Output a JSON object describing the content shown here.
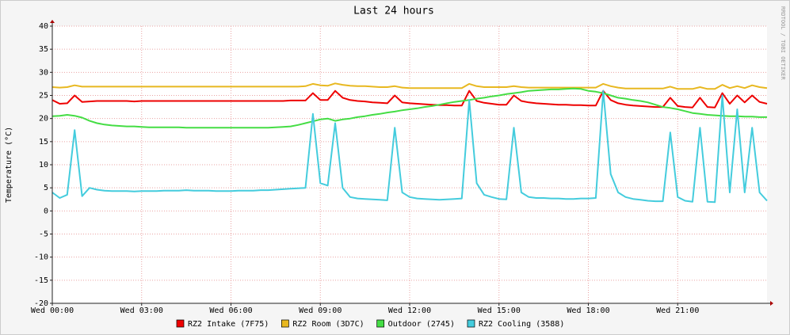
{
  "chart_data": {
    "type": "line",
    "title": "Last 24 hours",
    "ylabel": "Temperature (°C)",
    "watermark": "RRDTOOL / TOBI OETIKER",
    "x": [
      0,
      0.25,
      0.5,
      0.75,
      1,
      1.25,
      1.5,
      1.75,
      2,
      2.25,
      2.5,
      2.75,
      3,
      3.25,
      3.5,
      3.75,
      4,
      4.25,
      4.5,
      4.75,
      5,
      5.25,
      5.5,
      5.75,
      6,
      6.25,
      6.5,
      6.75,
      7,
      7.25,
      7.5,
      7.75,
      8,
      8.25,
      8.5,
      8.75,
      9,
      9.25,
      9.5,
      9.75,
      10,
      10.25,
      10.5,
      10.75,
      11,
      11.25,
      11.5,
      11.75,
      12,
      12.25,
      12.5,
      12.75,
      13,
      13.25,
      13.5,
      13.75,
      14,
      14.25,
      14.5,
      14.75,
      15,
      15.25,
      15.5,
      15.75,
      16,
      16.25,
      16.5,
      16.75,
      17,
      17.25,
      17.5,
      17.75,
      18,
      18.25,
      18.5,
      18.75,
      19,
      19.25,
      19.5,
      19.75,
      20,
      20.25,
      20.5,
      20.75,
      21,
      21.25,
      21.5,
      21.75,
      22,
      22.25,
      22.5,
      22.75,
      23,
      23.25,
      23.5,
      23.75,
      24
    ],
    "xlim": [
      0,
      24
    ],
    "xticks": [
      {
        "value": 0,
        "label": "Wed 00:00"
      },
      {
        "value": 3,
        "label": "Wed 03:00"
      },
      {
        "value": 6,
        "label": "Wed 06:00"
      },
      {
        "value": 9,
        "label": "Wed 09:00"
      },
      {
        "value": 12,
        "label": "Wed 12:00"
      },
      {
        "value": 15,
        "label": "Wed 15:00"
      },
      {
        "value": 18,
        "label": "Wed 18:00"
      },
      {
        "value": 21,
        "label": "Wed 21:00"
      }
    ],
    "ylim": [
      -20,
      40
    ],
    "yticks": [
      -20,
      -15,
      -10,
      -5,
      0,
      5,
      10,
      15,
      20,
      25,
      30,
      35,
      40
    ],
    "grid": true,
    "series": [
      {
        "name": "RZ2 Intake (7F75)",
        "color": "#ee0000",
        "values": [
          24.0,
          23.2,
          23.3,
          25.0,
          23.6,
          23.7,
          23.8,
          23.8,
          23.8,
          23.8,
          23.8,
          23.7,
          23.8,
          23.8,
          23.8,
          23.8,
          23.8,
          23.8,
          23.8,
          23.8,
          23.8,
          23.8,
          23.8,
          23.8,
          23.8,
          23.8,
          23.8,
          23.8,
          23.8,
          23.8,
          23.8,
          23.8,
          23.9,
          23.9,
          23.9,
          25.5,
          24.0,
          24.0,
          26.0,
          24.5,
          24.0,
          23.8,
          23.7,
          23.5,
          23.4,
          23.3,
          25.0,
          23.5,
          23.3,
          23.2,
          23.1,
          23.0,
          22.9,
          22.9,
          22.8,
          22.8,
          26.0,
          23.8,
          23.4,
          23.2,
          23.0,
          23.0,
          25.0,
          23.8,
          23.5,
          23.3,
          23.2,
          23.1,
          23.0,
          23.0,
          22.9,
          22.9,
          22.8,
          22.8,
          26.0,
          24.0,
          23.3,
          23.0,
          22.8,
          22.7,
          22.6,
          22.5,
          22.5,
          24.5,
          22.7,
          22.5,
          22.4,
          24.5,
          22.5,
          22.4,
          25.5,
          23.2,
          25.0,
          23.5,
          25.0,
          23.6,
          23.2
        ]
      },
      {
        "name": "RZ2 Room (3D7C)",
        "color": "#e8b820",
        "values": [
          26.8,
          26.7,
          26.8,
          27.2,
          26.9,
          26.9,
          26.9,
          26.9,
          26.9,
          26.9,
          26.9,
          26.9,
          26.9,
          26.9,
          26.9,
          26.9,
          26.9,
          26.9,
          26.9,
          26.9,
          26.9,
          26.9,
          26.9,
          26.9,
          26.9,
          26.9,
          26.9,
          26.9,
          26.9,
          26.9,
          26.9,
          26.9,
          26.9,
          26.9,
          27.0,
          27.5,
          27.2,
          27.1,
          27.6,
          27.3,
          27.1,
          27.0,
          27.0,
          26.9,
          26.8,
          26.8,
          27.0,
          26.7,
          26.6,
          26.6,
          26.6,
          26.6,
          26.6,
          26.6,
          26.6,
          26.6,
          27.5,
          27.0,
          26.8,
          26.8,
          26.8,
          26.8,
          27.0,
          26.8,
          26.7,
          26.7,
          26.7,
          26.7,
          26.7,
          26.7,
          26.7,
          26.7,
          26.7,
          26.7,
          27.5,
          27.0,
          26.7,
          26.5,
          26.5,
          26.5,
          26.5,
          26.5,
          26.5,
          26.9,
          26.4,
          26.4,
          26.4,
          26.8,
          26.4,
          26.4,
          27.3,
          26.6,
          27.0,
          26.6,
          27.2,
          26.8,
          26.6
        ]
      },
      {
        "name": "Outdoor (2745)",
        "color": "#44dd44",
        "values": [
          20.5,
          20.6,
          20.8,
          20.6,
          20.2,
          19.5,
          19.0,
          18.7,
          18.5,
          18.4,
          18.3,
          18.3,
          18.2,
          18.1,
          18.1,
          18.1,
          18.1,
          18.1,
          18.0,
          18.0,
          18.0,
          18.0,
          18.0,
          18.0,
          18.0,
          18.0,
          18.0,
          18.0,
          18.0,
          18.0,
          18.1,
          18.2,
          18.3,
          18.6,
          19.0,
          19.4,
          19.8,
          20.0,
          19.5,
          19.8,
          20.0,
          20.3,
          20.5,
          20.8,
          21.0,
          21.3,
          21.5,
          21.8,
          22.0,
          22.2,
          22.5,
          22.7,
          23.0,
          23.3,
          23.6,
          23.8,
          24.0,
          24.3,
          24.5,
          24.8,
          25.0,
          25.3,
          25.5,
          25.7,
          26.0,
          26.1,
          26.2,
          26.3,
          26.3,
          26.4,
          26.5,
          26.4,
          26.0,
          25.8,
          25.5,
          25.0,
          24.5,
          24.3,
          24.0,
          23.8,
          23.5,
          23.0,
          22.5,
          22.3,
          22.0,
          21.6,
          21.2,
          21.0,
          20.8,
          20.7,
          20.6,
          20.5,
          20.5,
          20.4,
          20.4,
          20.3,
          20.3
        ]
      },
      {
        "name": "RZ2 Cooling (3588)",
        "color": "#44ccdd",
        "values": [
          4.0,
          2.8,
          3.5,
          17.5,
          3.2,
          5.0,
          4.6,
          4.4,
          4.3,
          4.3,
          4.3,
          4.2,
          4.3,
          4.3,
          4.3,
          4.4,
          4.4,
          4.4,
          4.5,
          4.4,
          4.4,
          4.4,
          4.3,
          4.3,
          4.3,
          4.4,
          4.4,
          4.4,
          4.5,
          4.5,
          4.6,
          4.7,
          4.8,
          4.9,
          5.0,
          21.0,
          6.0,
          5.5,
          19.0,
          5.0,
          3.0,
          2.7,
          2.6,
          2.5,
          2.4,
          2.3,
          18.0,
          4.0,
          3.0,
          2.7,
          2.6,
          2.5,
          2.4,
          2.5,
          2.6,
          2.7,
          24.0,
          6.0,
          3.5,
          3.0,
          2.6,
          2.5,
          18.0,
          4.0,
          3.0,
          2.8,
          2.8,
          2.7,
          2.7,
          2.6,
          2.6,
          2.7,
          2.7,
          2.8,
          26.0,
          8.0,
          4.0,
          3.0,
          2.6,
          2.4,
          2.2,
          2.1,
          2.1,
          17.0,
          3.0,
          2.2,
          2.0,
          18.0,
          2.0,
          1.9,
          25.0,
          4.0,
          22.0,
          4.0,
          18.0,
          4.0,
          2.2
        ]
      }
    ]
  }
}
